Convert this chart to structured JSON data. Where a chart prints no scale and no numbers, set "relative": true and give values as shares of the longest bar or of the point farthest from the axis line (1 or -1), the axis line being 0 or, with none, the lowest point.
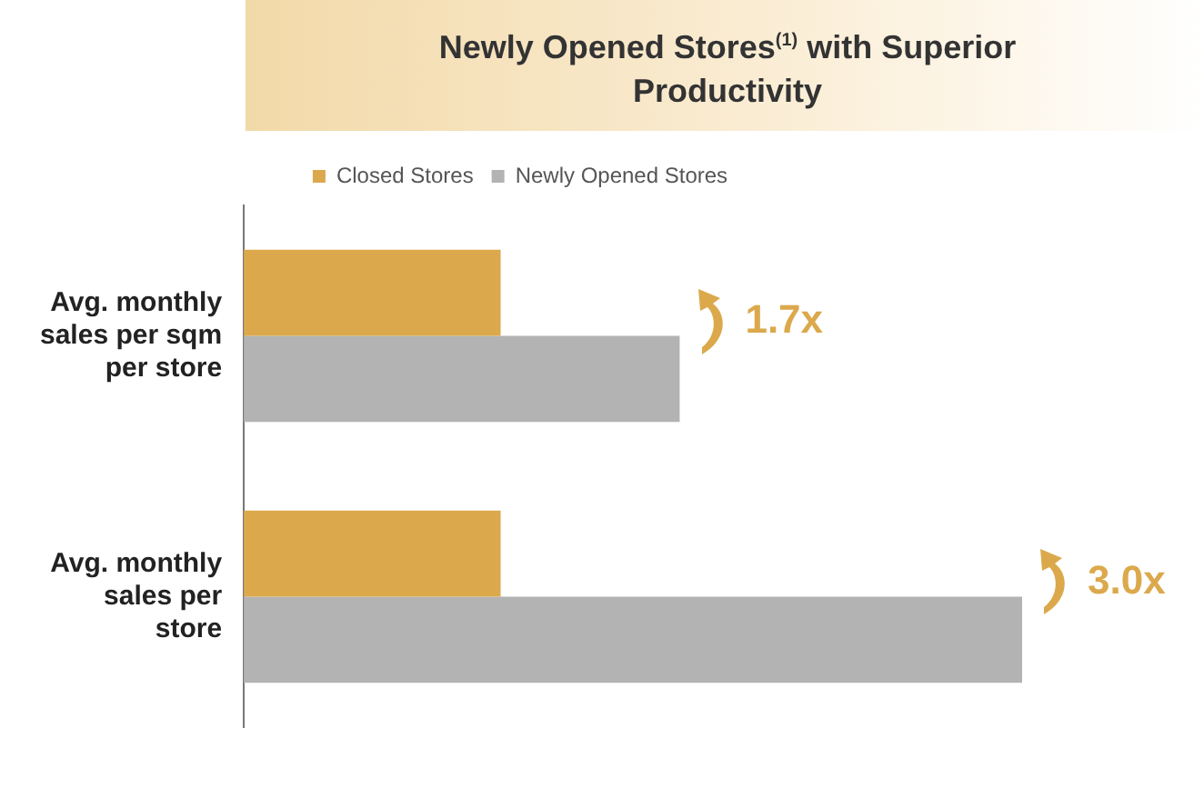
{
  "chart_data": {
    "type": "bar",
    "orientation": "horizontal",
    "relative": true,
    "title": "Newly Opened Stores$^{(1)}$ with Superior Productivity",
    "categories": [
      "Avg. monthly sales per sqm per store",
      "Avg. monthly sales per store"
    ],
    "series": [
      {
        "name": "Closed Stores",
        "color": "#dba94c",
        "values": [
          0.33,
          0.33
        ]
      },
      {
        "name": "Newly Opened Stores",
        "color": "#b3b3b3",
        "values": [
          0.56,
          1.0
        ]
      }
    ],
    "annotations": [
      "1.7x",
      "3.0x"
    ],
    "legend": "top",
    "grid": false
  }
}
